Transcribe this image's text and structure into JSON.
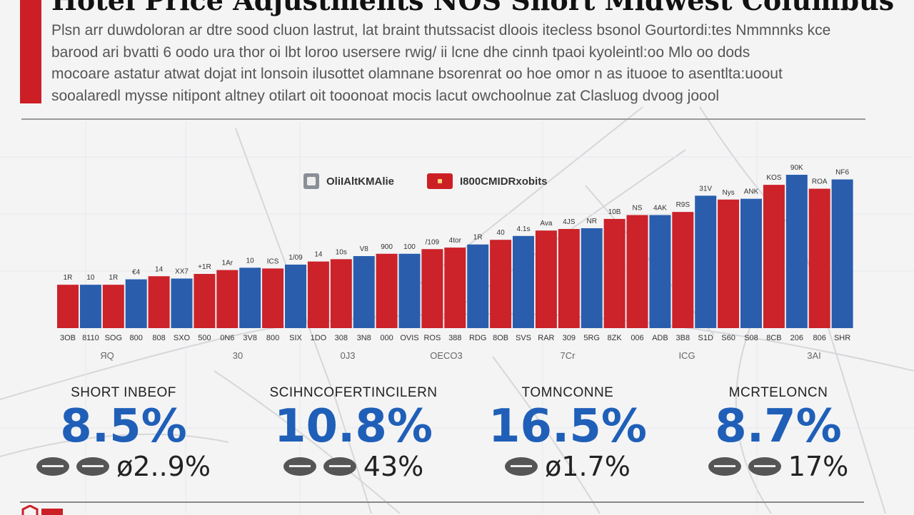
{
  "header": {
    "title": "Hotel Price Adjustments NOS Short Midwest Columbus",
    "intro_lines": [
      "Plsn arr duwdoloran ar dtre sood cluon lastrut, lat braint thutssacist dloois itecless bsonol Gourtordi:tes Nmmnnks kce",
      "barood ari bvatti 6 oodo ura thor oi lbt loroo usersere rwig/ ii lcne dhe cinnh tpaoi kyoleintl:oo Mlo oo dods",
      "mocoare astatur atwat dojat int lonsoin ilusottet olamnane bsorenrat oo hoe omor n as ituooe to asentlta:uoout",
      "sooalaredl mysse nitipont altney otilart oit tooonoat mocis lacut owchoolnue zat Clasluog dvoog joool"
    ]
  },
  "legend": [
    {
      "label": "OliIAltKMAlie",
      "color": "#8a8f96",
      "icon": "square-icon"
    },
    {
      "label": "I800CMIDRxobits",
      "color": "#cc1f25",
      "icon": "square-icon"
    }
  ],
  "colors": {
    "red": "#cc2229",
    "blue": "#2a5ead",
    "accent": "#cc1f25",
    "stat_blue": "#1f5fb8"
  },
  "chart_data": {
    "type": "bar",
    "title": "",
    "xlabel": "",
    "ylabel": "",
    "grid": false,
    "legend_placement": "top",
    "categories": [
      "3OB",
      "8110",
      "SOG",
      "800",
      "808",
      "SXO",
      "500",
      "0N6",
      "3V8",
      "800",
      "SIX",
      "1DO",
      "308",
      "3N8",
      "000",
      "OVIS",
      "ROS",
      "388",
      "RDG",
      "8OB",
      "SVS",
      "RAR",
      "309",
      "5RG",
      "8ZK",
      "006",
      "ADB",
      "3B8",
      "S1D",
      "S60",
      "S08",
      "8CB",
      "206",
      "806",
      "SHR"
    ],
    "values": [
      56,
      56,
      56,
      63,
      67,
      64,
      70,
      75,
      78,
      77,
      82,
      86,
      89,
      93,
      96,
      96,
      102,
      104,
      108,
      114,
      119,
      126,
      128,
      129,
      141,
      146,
      146,
      150,
      171,
      166,
      167,
      185,
      198,
      180,
      192
    ],
    "bar_colors": [
      "red",
      "blue",
      "red",
      "blue",
      "red",
      "blue",
      "red",
      "red",
      "blue",
      "red",
      "blue",
      "red",
      "red",
      "blue",
      "red",
      "blue",
      "red",
      "red",
      "blue",
      "red",
      "blue",
      "red",
      "red",
      "blue",
      "red",
      "red",
      "blue",
      "red",
      "blue",
      "red",
      "blue",
      "red",
      "blue",
      "red",
      "blue"
    ],
    "data_labels": [
      "1R",
      "10",
      "1R",
      "€4",
      "14",
      "XX7",
      "+1R",
      "1Ar",
      "10",
      "ICS",
      "1/09",
      "14",
      "10s",
      "V8",
      "900",
      "100",
      "/109",
      "4tor",
      "1R",
      "40",
      "4.1s",
      "Ava",
      "4JS",
      "NR",
      "10B",
      "NS",
      "4AK",
      "R9S",
      "31V",
      "Nys",
      "ANK",
      "KOS",
      "90K",
      "ROA",
      "NF6"
    ],
    "group_labels": [
      "ЯQ",
      "30",
      "0J3",
      "OECO3",
      "7Cr",
      "ICG",
      "3AI"
    ]
  },
  "stats": [
    {
      "label": "SHORT INBEOF",
      "value": "8.5%",
      "sub": "ø2..9%"
    },
    {
      "label": "SCIHNCOFERTINCILERN",
      "value": "10.8%",
      "sub": "43%"
    },
    {
      "label": "TOMNCONNE",
      "value": "16.5%",
      "sub": "ø1.7%"
    },
    {
      "label": "MCRTELONCN",
      "value": "8.7%",
      "sub": "17%"
    }
  ]
}
